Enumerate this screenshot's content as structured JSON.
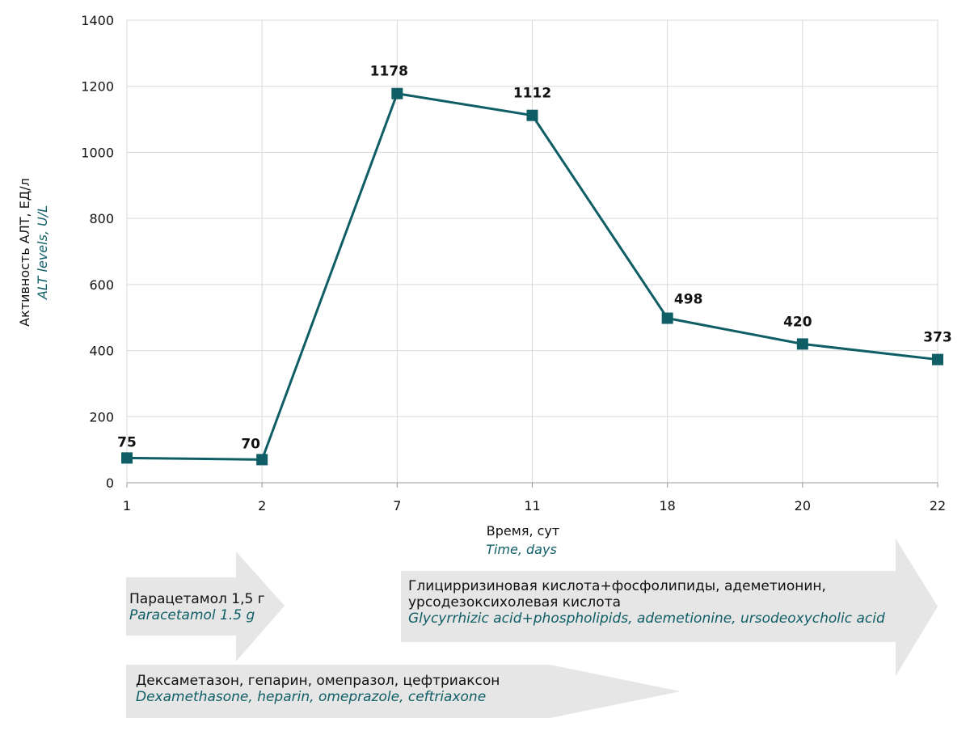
{
  "chart_data": {
    "type": "line",
    "x": [
      "1",
      "2",
      "7",
      "11",
      "18",
      "20",
      "22"
    ],
    "series": [
      {
        "values": [
          75,
          70,
          1178,
          1112,
          498,
          420,
          373
        ]
      }
    ],
    "data_labels": [
      "75",
      "70",
      "1178",
      "1112",
      "498",
      "420",
      "373"
    ],
    "ylim": [
      0,
      1400
    ],
    "yticks": [
      "0",
      "200",
      "400",
      "600",
      "800",
      "1000",
      "1200",
      "1400"
    ],
    "ylabel": "Активность АЛТ, ЕД/л",
    "ylabel_en": "ALT levels, U/L",
    "xlabel": "Время, сут",
    "xlabel_en": "Time, days",
    "grid": "vertical and horizontal, light gray",
    "line_color": "#0f5e66",
    "marker": "square"
  },
  "therapy_arrows": [
    {
      "ru": "Парацетамол 1,5 г",
      "en": "Paracetamol 1.5 g"
    },
    {
      "ru": "Глицирризиновая кислота+фосфолипиды, адеметионин,",
      "ru2": "урсодезоксихолевая кислота",
      "en": "Glycyrrhizic acid+phospholipids, ademetionine, ursodeoxycholic acid"
    },
    {
      "ru": "Дексаметазон, гепарин, омепразол, цефтриаксон",
      "en": "Dexamethasone, heparin, omeprazole, ceftriaxone"
    }
  ],
  "colors": {
    "line": "#0f5e66",
    "arrow": "#e6e6e6",
    "grid": "#d9d9d9",
    "en_text": "#0f5e66"
  }
}
